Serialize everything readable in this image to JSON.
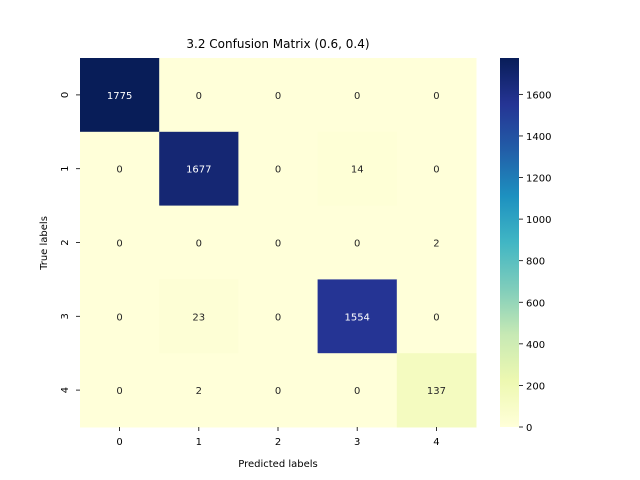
{
  "chart_data": {
    "type": "heatmap",
    "title": "3.2 Confusion Matrix (0.6, 0.4)",
    "xlabel": "Predicted labels",
    "ylabel": "True labels",
    "x_categories": [
      "0",
      "1",
      "2",
      "3",
      "4"
    ],
    "y_categories": [
      "0",
      "1",
      "2",
      "3",
      "4"
    ],
    "values": [
      [
        1775,
        0,
        0,
        0,
        0
      ],
      [
        0,
        1677,
        0,
        14,
        0
      ],
      [
        0,
        0,
        0,
        0,
        2
      ],
      [
        0,
        23,
        0,
        1554,
        0
      ],
      [
        0,
        2,
        0,
        0,
        137
      ]
    ],
    "colorbar": {
      "colormap": "YlGnBu",
      "range": [
        0,
        1775
      ],
      "ticks": [
        0,
        200,
        400,
        600,
        800,
        1000,
        1200,
        1400,
        1600
      ],
      "tick_labels": [
        "0",
        "200",
        "400",
        "600",
        "800",
        "1000",
        "1200",
        "1400",
        "1600"
      ]
    },
    "grid": false
  }
}
